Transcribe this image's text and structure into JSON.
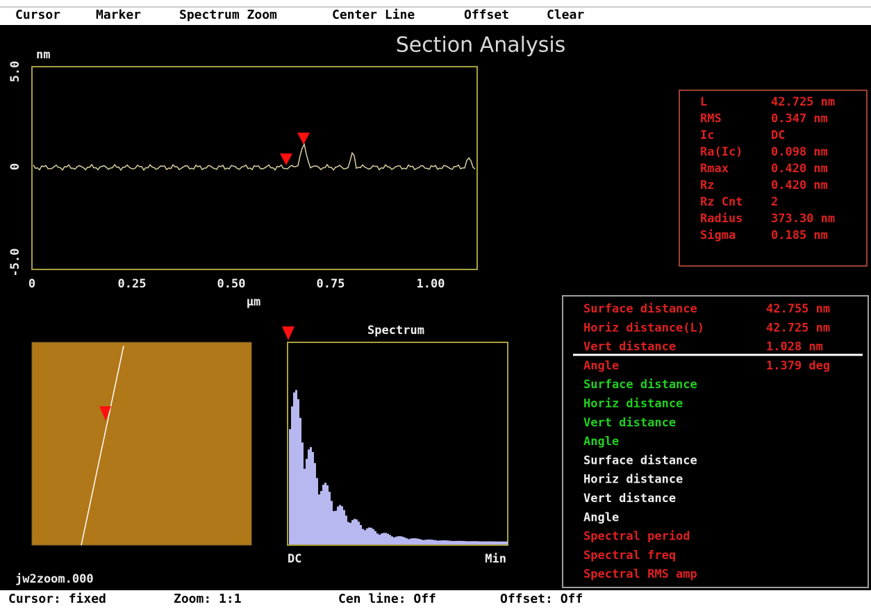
{
  "menu": [
    "Cursor",
    "Marker",
    "Spectrum Zoom",
    "Center Line",
    "Offset",
    "Clear"
  ],
  "title": "Section Analysis",
  "profile": {
    "y_unit": "nm",
    "y_ticks": [
      "5.0",
      "0",
      "-5.0"
    ],
    "x_ticks": [
      "0",
      "0.25",
      "0.50",
      "0.75",
      "1.00"
    ],
    "x_unit": "µm"
  },
  "stats": [
    [
      "L",
      "42.725 nm"
    ],
    [
      "RMS",
      "0.347 nm"
    ],
    [
      "Ic",
      "DC"
    ],
    [
      "Ra(Ic)",
      "0.098 nm"
    ],
    [
      "Rmax",
      "0.420 nm"
    ],
    [
      "Rz",
      "0.420 nm"
    ],
    [
      "Rz Cnt",
      "2"
    ],
    [
      "Radius",
      "373.30 nm"
    ],
    [
      "Sigma",
      "0.185 nm"
    ]
  ],
  "spectrum": {
    "title": "Spectrum",
    "left_label": "DC",
    "right_label": "Min"
  },
  "measurements": {
    "red": [
      [
        "Surface distance",
        "42.755 nm"
      ],
      [
        "Horiz distance(L)",
        "42.725 nm"
      ],
      [
        "Vert distance",
        "1.028 nm"
      ],
      [
        "Angle",
        "1.379 deg"
      ]
    ],
    "green": [
      "Surface distance",
      "Horiz distance",
      "Vert distance",
      "Angle"
    ],
    "white": [
      "Surface distance",
      "Horiz distance",
      "Vert distance",
      "Angle"
    ],
    "spectral": [
      "Spectral period",
      "Spectral freq",
      "Spectral RMS amp"
    ]
  },
  "file_name": "jw2zoom.000",
  "status": [
    "Cursor: fixed",
    "Zoom: 1:1",
    "Cen line: Off",
    "Offset: Off"
  ]
}
